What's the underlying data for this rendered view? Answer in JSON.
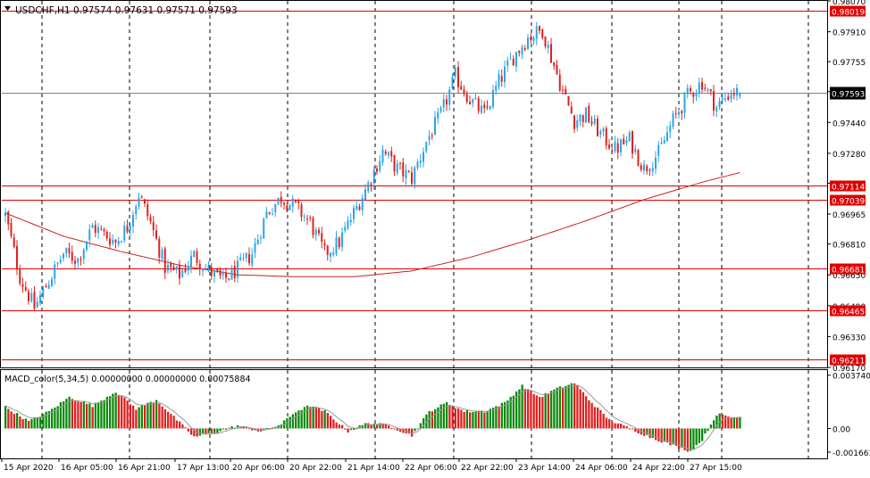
{
  "header": {
    "symbol_line": "USDCHF,H1  0.97574 0.97631 0.97571 0.97593",
    "dropdown_icon": "triangle-down-icon"
  },
  "price_scale": {
    "ticks": [
      "0.98070",
      "0.97910",
      "0.97755",
      "0.97600",
      "0.97440",
      "0.97280",
      "0.97125",
      "0.96965",
      "0.96810",
      "0.96650",
      "0.96490",
      "0.96330",
      "0.96170"
    ]
  },
  "current_price_label": "0.97593",
  "horizontal_lines": [
    "0.98019",
    "0.97114",
    "0.97039",
    "0.96681",
    "0.96465",
    "0.96211"
  ],
  "macd": {
    "label": "MACD_color(5,34,5) 0.00000000 0.00000000 0.00075884",
    "ticks": [
      "0.00374022",
      "0.00",
      "-0.00166331"
    ]
  },
  "time_axis": {
    "labels": [
      "15 Apr 2020",
      "16 Apr 05:00",
      "16 Apr 21:00",
      "17 Apr 13:00",
      "20 Apr 06:00",
      "20 Apr 22:00",
      "21 Apr 14:00",
      "22 Apr 06:00",
      "22 Apr 22:00",
      "23 Apr 14:00",
      "24 Apr 06:00",
      "24 Apr 22:00",
      "27 Apr 15:00"
    ]
  },
  "colors": {
    "bull": "#2ca4e6",
    "bear": "#e02020",
    "level_line": "#e00000",
    "ma_line": "#cc2020",
    "macd_up": "#0a8a0a",
    "macd_down": "#e02020",
    "signal": "#999999",
    "current_line": "#6a8a9a",
    "grid": "#000000"
  },
  "chart_data": {
    "type": "candlestick",
    "symbol": "USDCHF",
    "timeframe": "H1",
    "ohlc_last": {
      "open": 0.97574,
      "high": 0.97631,
      "low": 0.97571,
      "close": 0.97593
    },
    "ylim": [
      0.9617,
      0.9807
    ],
    "close_path": [
      [
        0,
        0.9696
      ],
      [
        5,
        0.9664
      ],
      [
        10,
        0.9648
      ],
      [
        15,
        0.9662
      ],
      [
        20,
        0.9676
      ],
      [
        25,
        0.9673
      ],
      [
        30,
        0.969
      ],
      [
        34,
        0.9686
      ],
      [
        38,
        0.9682
      ],
      [
        42,
        0.969
      ],
      [
        46,
        0.9707
      ],
      [
        50,
        0.9692
      ],
      [
        55,
        0.9669
      ],
      [
        60,
        0.9665
      ],
      [
        65,
        0.9675
      ],
      [
        70,
        0.9667
      ],
      [
        75,
        0.9662
      ],
      [
        80,
        0.9668
      ],
      [
        85,
        0.9676
      ],
      [
        90,
        0.9697
      ],
      [
        95,
        0.9705
      ],
      [
        100,
        0.97
      ],
      [
        105,
        0.9692
      ],
      [
        110,
        0.9676
      ],
      [
        115,
        0.9682
      ],
      [
        120,
        0.9697
      ],
      [
        125,
        0.9712
      ],
      [
        130,
        0.9729
      ],
      [
        135,
        0.972
      ],
      [
        140,
        0.9715
      ],
      [
        145,
        0.9734
      ],
      [
        150,
        0.9748
      ],
      [
        155,
        0.9768
      ],
      [
        160,
        0.9756
      ],
      [
        165,
        0.9748
      ],
      [
        170,
        0.9765
      ],
      [
        175,
        0.9778
      ],
      [
        180,
        0.9788
      ],
      [
        185,
        0.9792
      ],
      [
        188,
        0.9778
      ],
      [
        192,
        0.976
      ],
      [
        196,
        0.9745
      ],
      [
        200,
        0.9748
      ],
      [
        205,
        0.9738
      ],
      [
        210,
        0.973
      ],
      [
        215,
        0.9735
      ],
      [
        220,
        0.972
      ],
      [
        225,
        0.9728
      ],
      [
        230,
        0.9745
      ],
      [
        235,
        0.9758
      ],
      [
        240,
        0.9765
      ],
      [
        245,
        0.9752
      ],
      [
        250,
        0.976
      ],
      [
        253,
        0.9759
      ]
    ],
    "ma_path": [
      [
        0,
        0.9697
      ],
      [
        20,
        0.9685
      ],
      [
        40,
        0.9677
      ],
      [
        60,
        0.967
      ],
      [
        80,
        0.9665
      ],
      [
        100,
        0.9664
      ],
      [
        120,
        0.9664
      ],
      [
        140,
        0.9667
      ],
      [
        160,
        0.9674
      ],
      [
        180,
        0.9683
      ],
      [
        200,
        0.9693
      ],
      [
        220,
        0.9704
      ],
      [
        240,
        0.9713
      ],
      [
        253,
        0.9718
      ]
    ],
    "macd_ylim": [
      -0.0021,
      0.0041
    ],
    "macd_path": [
      [
        0,
        0.0015
      ],
      [
        8,
        0.0005
      ],
      [
        15,
        0.0012
      ],
      [
        22,
        0.0022
      ],
      [
        30,
        0.0016
      ],
      [
        38,
        0.0026
      ],
      [
        45,
        0.0014
      ],
      [
        52,
        0.002
      ],
      [
        58,
        0.0008
      ],
      [
        65,
        -0.0006
      ],
      [
        72,
        -0.0003
      ],
      [
        80,
        0.0002
      ],
      [
        88,
        -0.0002
      ],
      [
        95,
        0.0003
      ],
      [
        100,
        0.0012
      ],
      [
        105,
        0.0016
      ],
      [
        110,
        0.0012
      ],
      [
        118,
        -0.0002
      ],
      [
        125,
        0.0004
      ],
      [
        132,
        0.0002
      ],
      [
        140,
        -0.0005
      ],
      [
        146,
        0.0012
      ],
      [
        152,
        0.0018
      ],
      [
        158,
        0.0012
      ],
      [
        165,
        0.0012
      ],
      [
        172,
        0.0018
      ],
      [
        178,
        0.003
      ],
      [
        184,
        0.0022
      ],
      [
        190,
        0.0028
      ],
      [
        196,
        0.0032
      ],
      [
        202,
        0.0018
      ],
      [
        208,
        0.0006
      ],
      [
        215,
        0.0
      ],
      [
        222,
        -0.0006
      ],
      [
        230,
        -0.0012
      ],
      [
        236,
        -0.0016
      ],
      [
        240,
        -0.0008
      ],
      [
        245,
        0.001
      ],
      [
        250,
        0.0008
      ],
      [
        253,
        0.0008
      ]
    ],
    "bars_count": 254
  }
}
